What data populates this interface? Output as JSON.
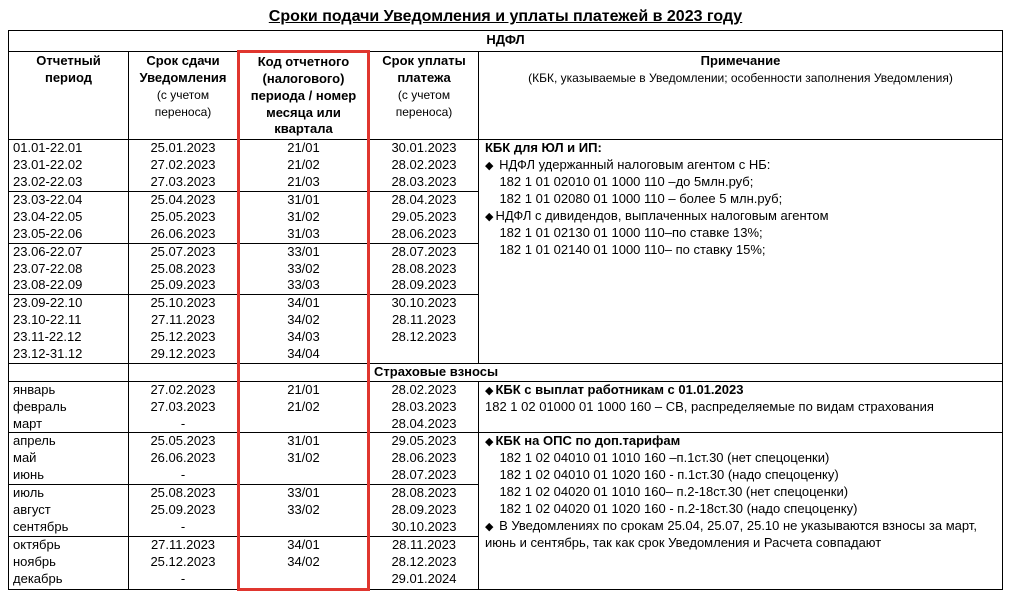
{
  "title": "Сроки подачи Уведомления и уплаты платежей в 2023 году",
  "columns": {
    "c1": "Отчетный период",
    "c2": "Срок сдачи Уведомления",
    "c2sub": "(с учетом переноса)",
    "c3": "Код отчетного (налогового) периода / номер месяца или квартала",
    "c4": "Срок уплаты платежа",
    "c4sub": "(с учетом переноса)",
    "c5": "Примечание",
    "c5sub": "(КБК, указываемые в Уведомлении; особенности заполнения Уведомления)"
  },
  "sectionNdfl": "НДФЛ",
  "ndflBlocks": [
    {
      "rows": [
        {
          "p": "01.01-22.01",
          "d": "25.01.2023",
          "c": "21/01",
          "pay": "30.01.2023"
        },
        {
          "p": "23.01-22.02",
          "d": "27.02.2023",
          "c": "21/02",
          "pay": "28.02.2023"
        },
        {
          "p": "23.02-22.03",
          "d": "27.03.2023",
          "c": "21/03",
          "pay": "28.03.2023"
        }
      ]
    },
    {
      "rows": [
        {
          "p": "23.03-22.04",
          "d": "25.04.2023",
          "c": "31/01",
          "pay": "28.04.2023"
        },
        {
          "p": "23.04-22.05",
          "d": "25.05.2023",
          "c": "31/02",
          "pay": "29.05.2023"
        },
        {
          "p": "23.05-22.06",
          "d": "26.06.2023",
          "c": "31/03",
          "pay": "28.06.2023"
        }
      ]
    },
    {
      "rows": [
        {
          "p": "23.06-22.07",
          "d": "25.07.2023",
          "c": "33/01",
          "pay": "28.07.2023"
        },
        {
          "p": "23.07-22.08",
          "d": "25.08.2023",
          "c": "33/02",
          "pay": "28.08.2023"
        },
        {
          "p": "23.08-22.09",
          "d": "25.09.2023",
          "c": "33/03",
          "pay": "28.09.2023"
        }
      ]
    },
    {
      "rows": [
        {
          "p": "23.09-22.10",
          "d": "25.10.2023",
          "c": "34/01",
          "pay": "30.10.2023"
        },
        {
          "p": "23.10-22.11",
          "d": "27.11.2023",
          "c": "34/02",
          "pay": "28.11.2023"
        },
        {
          "p": "23.11-22.12",
          "d": "25.12.2023",
          "c": "34/03",
          "pay": "28.12.2023"
        },
        {
          "p": "23.12-31.12",
          "d": "29.12.2023",
          "c": "34/04",
          "pay": " "
        }
      ]
    }
  ],
  "ndflNotes": {
    "t0": "КБК для ЮЛ и ИП:",
    "l1pre": "НДФЛ удержанный налоговым агентом с НБ:",
    "l2": "    182 1 01 02010 01 1000 110 –до 5млн.руб;",
    "l3": "    182 1 01 02080 01 1000 110 – более 5 млн.руб;",
    "l4pre": "НДФЛ с дивидендов, выплаченных налоговым агентом",
    "l5": "    182 1 01 02130 01 1000 110–по ставке 13%;",
    "l6": "    182 1 01 02140 01 1000 110– по ставку 15%;"
  },
  "sectionSv": "Страховые взносы",
  "svBlocks": [
    {
      "rows": [
        {
          "p": "январь",
          "d": "27.02.2023",
          "c": "21/01",
          "pay": "28.02.2023"
        },
        {
          "p": "февраль",
          "d": "27.03.2023",
          "c": "21/02",
          "pay": "28.03.2023"
        },
        {
          "p": "март",
          "d": "-",
          "c": " ",
          "pay": "28.04.2023"
        }
      ],
      "note": {
        "t0pre": "КБК с выплат работникам с 01.01.2023",
        "l1": "182 1 02 01000 01 1000 160 – СВ, распределяемые по видам страхования"
      }
    },
    {
      "rows": [
        {
          "p": "апрель",
          "d": "25.05.2023",
          "c": "31/01",
          "pay": "29.05.2023"
        },
        {
          "p": "май",
          "d": "26.06.2023",
          "c": "31/02",
          "pay": "28.06.2023"
        },
        {
          "p": "июнь",
          "d": "-",
          "c": " ",
          "pay": "28.07.2023"
        }
      ]
    },
    {
      "rows": [
        {
          "p": "июль",
          "d": "25.08.2023",
          "c": "33/01",
          "pay": "28.08.2023"
        },
        {
          "p": "август",
          "d": "25.09.2023",
          "c": "33/02",
          "pay": "28.09.2023"
        },
        {
          "p": "сентябрь",
          "d": "-",
          "c": " ",
          "pay": "30.10.2023"
        }
      ]
    },
    {
      "rows": [
        {
          "p": "октябрь",
          "d": "27.11.2023",
          "c": "34/01",
          "pay": "28.11.2023"
        },
        {
          "p": "ноябрь",
          "d": "25.12.2023",
          "c": "34/02",
          "pay": "28.12.2023"
        },
        {
          "p": "декабрь",
          "d": "-",
          "c": " ",
          "pay": "29.01.2024"
        }
      ]
    }
  ],
  "svBigNote": {
    "t0pre": "КБК на ОПС по доп.тарифам",
    "l1": "    182 1 02 04010 01 1010 160 –п.1ст.30 (нет спецоценки)",
    "l2": "    182 1 02 04010 01 1020 160 - п.1ст.30 (надо спецоценку)",
    "l3": "    182 1 02 04020 01 1010 160– п.2-18ст.30 (нет спецоценки)",
    "l4": "    182 1 02 04020 01 1020 160 - п.2-18ст.30 (надо спецоценку)",
    "l5pre": " В Уведомлениях по срокам 25.04, 25.07, 25.10 не указываются взносы за март, июнь и сентябрь, так как срок Уведомления и Расчета совпадают"
  }
}
